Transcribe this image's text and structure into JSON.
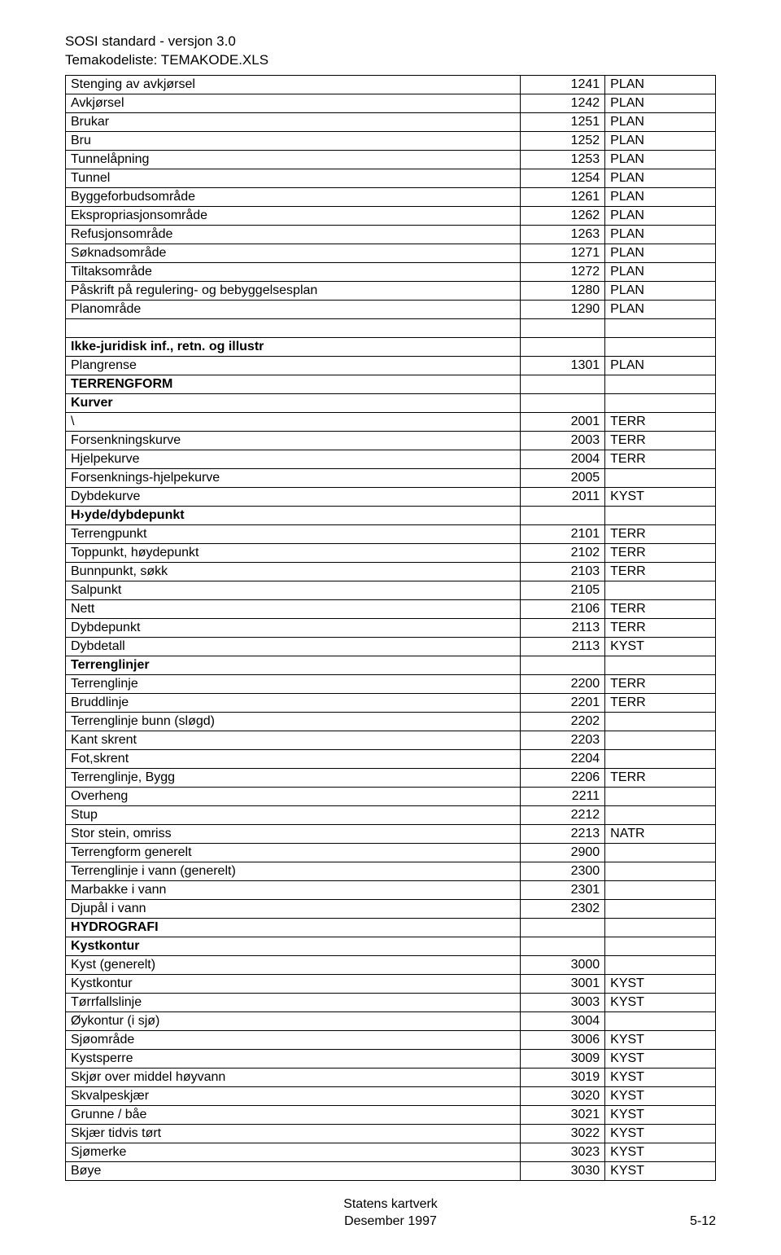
{
  "header": {
    "line1": "SOSI standard - versjon 3.0",
    "line2": "Temakodeliste: TEMAKODE.XLS"
  },
  "rows": [
    {
      "name": "Stenging av avkjørsel",
      "code": "1241",
      "cat": "PLAN"
    },
    {
      "name": "Avkjørsel",
      "code": "1242",
      "cat": "PLAN"
    },
    {
      "name": "Brukar",
      "code": "1251",
      "cat": "PLAN"
    },
    {
      "name": "Bru",
      "code": "1252",
      "cat": "PLAN"
    },
    {
      "name": "Tunnelåpning",
      "code": "1253",
      "cat": "PLAN"
    },
    {
      "name": "Tunnel",
      "code": "1254",
      "cat": "PLAN"
    },
    {
      "name": "Byggeforbudsområde",
      "code": "1261",
      "cat": "PLAN"
    },
    {
      "name": "Ekspropriasjonsområde",
      "code": "1262",
      "cat": "PLAN"
    },
    {
      "name": "Refusjonsområde",
      "code": "1263",
      "cat": "PLAN"
    },
    {
      "name": "Søknadsområde",
      "code": "1271",
      "cat": "PLAN"
    },
    {
      "name": "Tiltaksområde",
      "code": "1272",
      "cat": "PLAN"
    },
    {
      "name": "Påskrift på regulering- og bebyggelsesplan",
      "code": "1280",
      "cat": "PLAN"
    },
    {
      "name": "Planområde",
      "code": "1290",
      "cat": "PLAN"
    },
    {
      "spacer": true
    },
    {
      "name": "Ikke-juridisk inf., retn. og illustr",
      "bold": true
    },
    {
      "name": "Plangrense",
      "code": "1301",
      "cat": "PLAN"
    },
    {
      "name": " TERRENGFORM",
      "bold": true
    },
    {
      "name": "Kurver",
      "bold": true
    },
    {
      "name": "\\",
      "code": "2001",
      "cat": "TERR"
    },
    {
      "name": "Forsenkningskurve",
      "code": "2003",
      "cat": "TERR"
    },
    {
      "name": "Hjelpekurve",
      "code": "2004",
      "cat": "TERR"
    },
    {
      "name": "Forsenknings-hjelpekurve",
      "code": "2005"
    },
    {
      "name": "Dybdekurve",
      "code": "2011",
      "cat": "KYST"
    },
    {
      "name": " H›yde/dybdepunkt",
      "bold": true
    },
    {
      "name": "Terrengpunkt",
      "code": "2101",
      "cat": "TERR"
    },
    {
      "name": "Toppunkt, høydepunkt",
      "code": "2102",
      "cat": "TERR"
    },
    {
      "name": "Bunnpunkt, søkk",
      "code": "2103",
      "cat": "TERR"
    },
    {
      "name": "Salpunkt",
      "code": "2105"
    },
    {
      "name": "Nett",
      "code": "2106",
      "cat": "TERR"
    },
    {
      "name": "Dybdepunkt",
      "code": "2113",
      "cat": "TERR"
    },
    {
      "name": "Dybdetall",
      "code": "2113",
      "cat": "KYST"
    },
    {
      "name": "Terrenglinjer",
      "bold": true
    },
    {
      "name": "Terrenglinje",
      "code": "2200",
      "cat": "TERR"
    },
    {
      "name": "Bruddlinje",
      "code": "2201",
      "cat": "TERR"
    },
    {
      "name": "Terrenglinje bunn (sløgd)",
      "code": "2202"
    },
    {
      "name": "Kant skrent",
      "code": "2203"
    },
    {
      "name": "Fot,skrent",
      "code": "2204"
    },
    {
      "name": "Terrenglinje, Bygg",
      "code": "2206",
      "cat": "TERR"
    },
    {
      "name": "Overheng",
      "code": "2211"
    },
    {
      "name": "Stup",
      "code": "2212"
    },
    {
      "name": "Stor stein, omriss",
      "code": "2213",
      "cat": "NATR"
    },
    {
      "name": "Terrengform generelt",
      "code": "2900"
    },
    {
      "name": "Terrenglinje i vann (generelt)",
      "code": "2300"
    },
    {
      "name": "Marbakke i vann",
      "code": "2301"
    },
    {
      "name": "Djupål i vann",
      "code": "2302"
    },
    {
      "name": " HYDROGRAFI",
      "bold": true
    },
    {
      "name": "Kystkontur",
      "bold": true
    },
    {
      "name": "Kyst (generelt)",
      "code": "3000"
    },
    {
      "name": "Kystkontur",
      "code": "3001",
      "cat": "KYST"
    },
    {
      "name": "Tørrfallslinje",
      "code": "3003",
      "cat": "KYST"
    },
    {
      "name": "Øykontur (i sjø)",
      "code": "3004"
    },
    {
      "name": "Sjøområde",
      "code": "3006",
      "cat": "KYST"
    },
    {
      "name": "Kystsperre",
      "code": "3009",
      "cat": "KYST"
    },
    {
      "name": "Skjør over middel høyvann",
      "code": "3019",
      "cat": "KYST"
    },
    {
      "name": "Skvalpeskjær",
      "code": "3020",
      "cat": "KYST"
    },
    {
      "name": "Grunne / båe",
      "code": "3021",
      "cat": "KYST"
    },
    {
      "name": "Skjær tidvis tørt",
      "code": "3022",
      "cat": "KYST"
    },
    {
      "name": "Sjømerke",
      "code": "3023",
      "cat": "KYST"
    },
    {
      "name": "Bøye",
      "code": "3030",
      "cat": "KYST"
    }
  ],
  "footer": {
    "line1": "Statens kartverk",
    "line2": "Desember 1997",
    "pageref": "5-12"
  }
}
